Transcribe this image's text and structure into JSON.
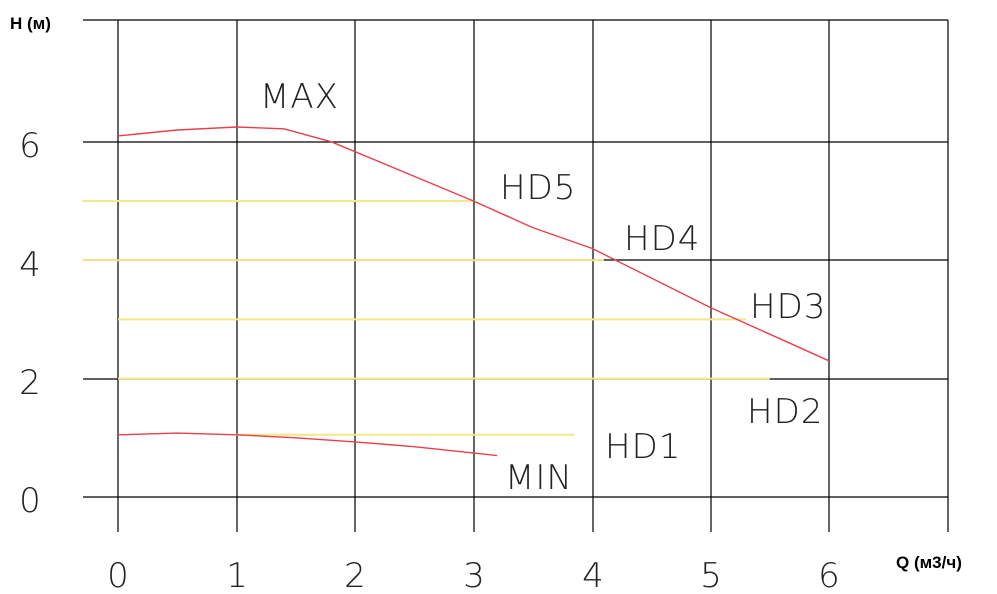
{
  "chart_data": {
    "type": "line",
    "xlabel": "Q (м3/ч)",
    "ylabel": "H (м)",
    "xlim": [
      0,
      7
    ],
    "ylim": [
      0,
      8
    ],
    "x_ticks": [
      "0",
      "1",
      "2",
      "3",
      "4",
      "5",
      "6"
    ],
    "y_ticks": [
      "0",
      "2",
      "4",
      "6"
    ],
    "grid": true,
    "colors": {
      "max_min": "#e8404a",
      "hd": "#f3e88a",
      "grid": "#000000"
    },
    "series": [
      {
        "name": "MAX",
        "points": [
          [
            0,
            6.1
          ],
          [
            0.5,
            6.2
          ],
          [
            1,
            6.25
          ],
          [
            1.4,
            6.22
          ],
          [
            1.8,
            6.0
          ],
          [
            2.4,
            5.5
          ],
          [
            3,
            5.0
          ],
          [
            3.5,
            4.55
          ],
          [
            4,
            4.2
          ],
          [
            4.5,
            3.7
          ],
          [
            5,
            3.2
          ],
          [
            5.5,
            2.75
          ],
          [
            6,
            2.3
          ]
        ]
      },
      {
        "name": "MIN",
        "points": [
          [
            0,
            1.05
          ],
          [
            0.5,
            1.08
          ],
          [
            1,
            1.05
          ],
          [
            1.5,
            1.0
          ],
          [
            2,
            0.93
          ],
          [
            2.5,
            0.85
          ],
          [
            3.2,
            0.7
          ]
        ]
      },
      {
        "name": "HD5",
        "points": [
          [
            -0.3,
            5
          ],
          [
            3,
            5
          ]
        ]
      },
      {
        "name": "HD4",
        "points": [
          [
            -0.3,
            4
          ],
          [
            4.1,
            4
          ]
        ]
      },
      {
        "name": "HD3",
        "points": [
          [
            0,
            3
          ],
          [
            5.3,
            3
          ]
        ]
      },
      {
        "name": "HD2",
        "points": [
          [
            0,
            2
          ],
          [
            5.5,
            2
          ]
        ]
      },
      {
        "name": "HD1",
        "points": [
          [
            1,
            1.05
          ],
          [
            3.85,
            1.05
          ]
        ]
      }
    ]
  }
}
